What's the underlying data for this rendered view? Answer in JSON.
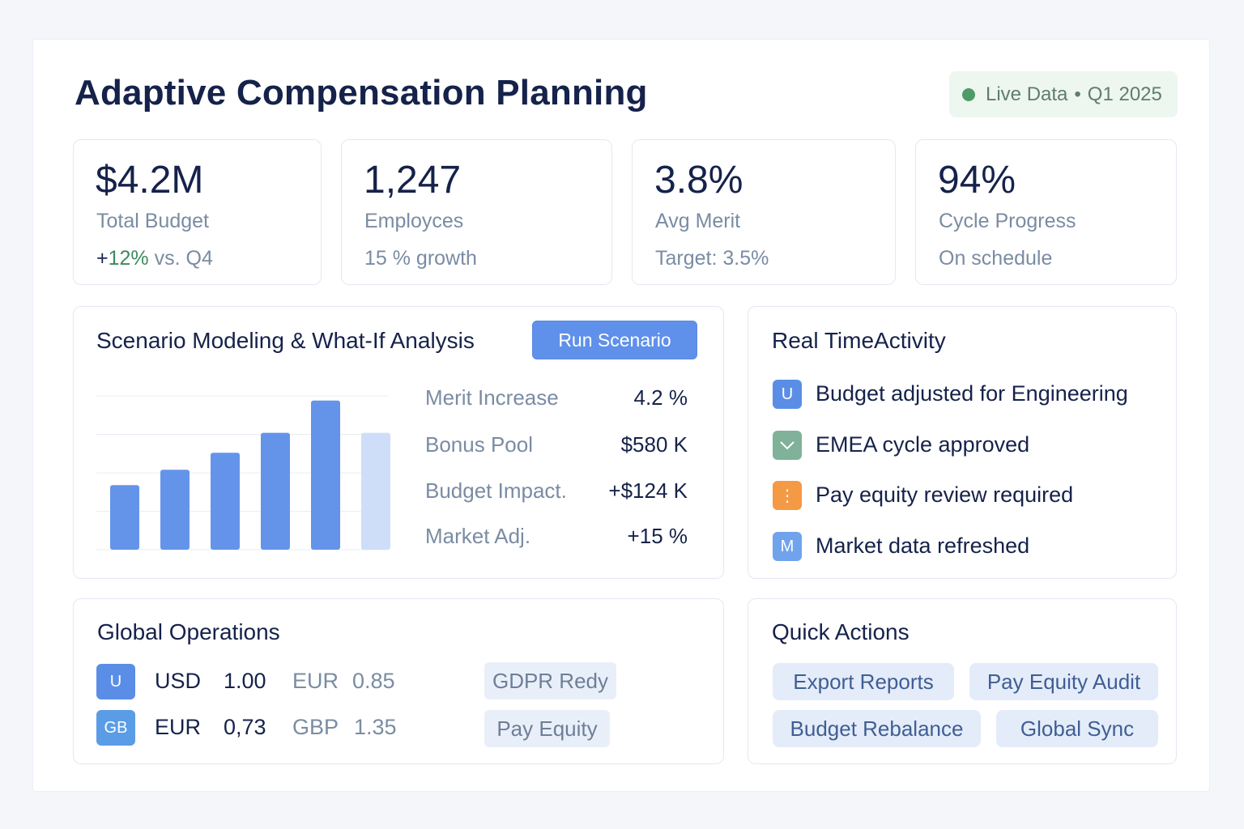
{
  "header": {
    "title": "Adaptive Compensation Planning",
    "live_label": "Live Data",
    "separator": "•",
    "period": "Q1 2025"
  },
  "kpis": [
    {
      "value": "$4.2M",
      "label": "Total Budget",
      "sub_prefix": "+",
      "sub_highlight": "12%",
      "sub_suffix": " vs. Q4"
    },
    {
      "value": "1,247",
      "label": "Employces",
      "sub": "15 % growth"
    },
    {
      "value": "3.8%",
      "label": "Avg Merit",
      "sub": "Target: 3.5%"
    },
    {
      "value": "94%",
      "label": "Cycle Progress",
      "sub": "On schedule"
    }
  ],
  "scenario": {
    "title": "Scenario Modeling & What-If Analysis",
    "run_button": "Run Scenario",
    "metrics": [
      {
        "label": "Merit Increase",
        "value": "4.2 %"
      },
      {
        "label": "Bonus Pool",
        "value": "$580 K"
      },
      {
        "label": "Budget Impact.",
        "value": "+$124 K"
      },
      {
        "label": "Market Adj.",
        "value": "+15 %"
      }
    ]
  },
  "chart_data": {
    "type": "bar",
    "values": [
      42,
      52,
      63,
      76,
      97,
      76
    ],
    "highlight": [
      false,
      false,
      false,
      false,
      false,
      true
    ],
    "ylim": [
      0,
      100
    ],
    "grid": true,
    "colors": {
      "bar": "#6494ea",
      "bar_light": "#cfdef8",
      "grid": "#e8edf5"
    }
  },
  "activity": {
    "title": "Real TimeActivity",
    "items": [
      {
        "icon": "U",
        "icon_name": "user-icon",
        "color": "#5a8ee6",
        "text": "Budget adjusted for Engineering"
      },
      {
        "icon": "✓",
        "icon_name": "check-icon",
        "color": "#7fb298",
        "text": "EMEA cycle approved"
      },
      {
        "icon": "⋮",
        "icon_name": "alert-icon",
        "color": "#f49a45",
        "text": "Pay equity review required"
      },
      {
        "icon": "M",
        "icon_name": "market-icon",
        "color": "#6fa3ec",
        "text": "Market data refreshed"
      }
    ]
  },
  "global_ops": {
    "title": "Global Operations",
    "rows": [
      {
        "flag": "U",
        "flag_color": "#5a8ee6",
        "code": "USD",
        "rate": "1.00",
        "code2": "EUR",
        "rate2": "0.85"
      },
      {
        "flag": "GB",
        "flag_color": "#5a9ce6",
        "code": "EUR",
        "rate": "0,73",
        "code2": "GBP",
        "rate2": "1.35"
      }
    ],
    "chips": [
      "GDPR Redy",
      "Pay Equity"
    ]
  },
  "quick_actions": {
    "title": "Quick Actions",
    "buttons": [
      "Export Reports",
      "Pay Equity Audit",
      "Budget Rebalance",
      "Global Sync"
    ]
  }
}
